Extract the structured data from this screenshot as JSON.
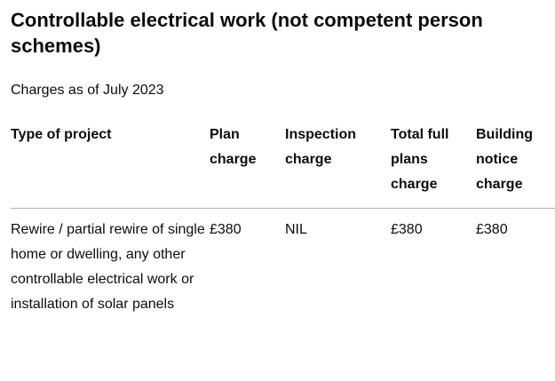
{
  "heading": "Controllable electrical work (not competent person schemes)",
  "subtitle": "Charges as of July 2023",
  "table": {
    "headers": [
      "Type of project",
      "Plan charge",
      "Inspection charge",
      "Total full plans charge",
      "Building notice charge"
    ],
    "rows": [
      {
        "type": "Rewire / partial rewire of single home or dwelling, any other controllable electrical work or installation of solar panels",
        "plan_charge": "£380",
        "inspection_charge": "NIL",
        "total_full_plans_charge": "£380",
        "building_notice_charge": "£380"
      }
    ]
  }
}
